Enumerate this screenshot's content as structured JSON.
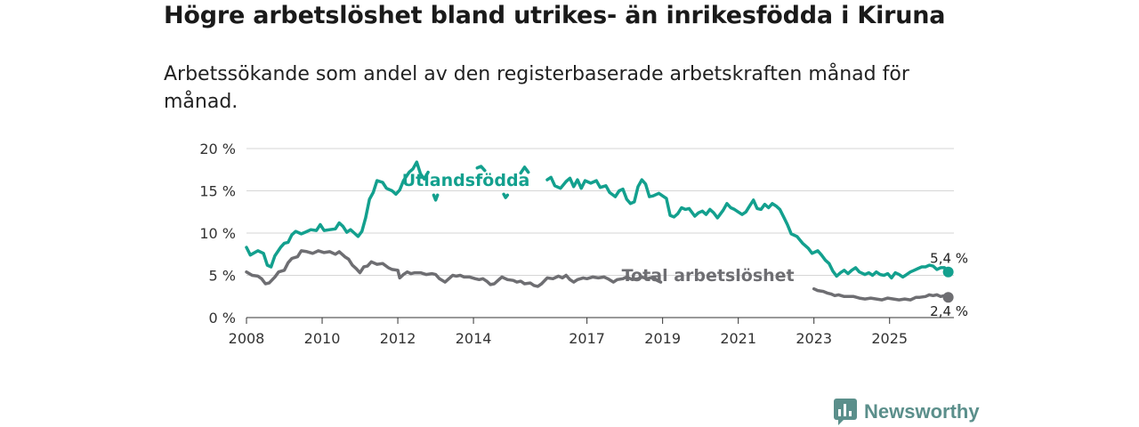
{
  "title": "Högre arbetslöshet bland utrikes- än inrikesfödda i Kiruna",
  "subtitle": "Arbetssökande som andel av den registerbaserade arbetskraften månad för månad.",
  "brand": "Newsworthy",
  "chart_data": {
    "type": "line",
    "title": "Högre arbetslöshet bland utrikes- än inrikesfödda i Kiruna",
    "subtitle": "Arbetssökande som andel av den registerbaserade arbetskraften månad för månad.",
    "xlabel": "",
    "ylabel": "",
    "xlim": [
      2008.0,
      2026.7
    ],
    "ylim": [
      0,
      20
    ],
    "x_ticks": [
      2008,
      2010,
      2012,
      2014,
      2017,
      2019,
      2021,
      2023,
      2025
    ],
    "y_ticks": [
      {
        "value": 0,
        "label": "0 %"
      },
      {
        "value": 5,
        "label": "5 %"
      },
      {
        "value": 10,
        "label": "10 %"
      },
      {
        "value": 15,
        "label": "15 %"
      },
      {
        "value": 20,
        "label": "20 %"
      }
    ],
    "grid": true,
    "series": [
      {
        "name": "Utlandsfödda",
        "color": "#13a08e",
        "end_label": "5,4 %",
        "points": [
          [
            2008.0,
            8.3
          ],
          [
            2008.1,
            7.4
          ],
          [
            2008.3,
            7.9
          ],
          [
            2008.45,
            7.6
          ],
          [
            2008.55,
            6.2
          ],
          [
            2008.65,
            6.0
          ],
          [
            2008.75,
            7.3
          ],
          [
            2008.9,
            8.3
          ],
          [
            2009.0,
            8.8
          ],
          [
            2009.1,
            8.9
          ],
          [
            2009.2,
            9.8
          ],
          [
            2009.3,
            10.2
          ],
          [
            2009.45,
            9.9
          ],
          [
            2009.55,
            10.1
          ],
          [
            2009.7,
            10.4
          ],
          [
            2009.85,
            10.3
          ],
          [
            2009.95,
            11.0
          ],
          [
            2010.05,
            10.3
          ],
          [
            2010.2,
            10.4
          ],
          [
            2010.35,
            10.5
          ],
          [
            2010.45,
            11.2
          ],
          [
            2010.55,
            10.8
          ],
          [
            2010.65,
            10.1
          ],
          [
            2010.75,
            10.4
          ],
          [
            2010.85,
            10.0
          ],
          [
            2010.95,
            9.6
          ],
          [
            2011.05,
            10.2
          ],
          [
            2011.15,
            11.8
          ],
          [
            2011.25,
            14.0
          ],
          [
            2011.35,
            14.8
          ],
          [
            2011.45,
            16.2
          ],
          [
            2011.6,
            16.0
          ],
          [
            2011.7,
            15.3
          ],
          [
            2011.85,
            15.0
          ],
          [
            2011.95,
            14.6
          ],
          [
            2012.05,
            15.1
          ],
          [
            2012.15,
            16.2
          ],
          [
            2012.3,
            17.2
          ],
          [
            2012.4,
            17.6
          ],
          [
            2012.5,
            18.4
          ],
          [
            2012.6,
            17.0
          ],
          [
            2012.7,
            16.4
          ],
          [
            2012.8,
            17.2
          ],
          null,
          [
            2012.95,
            14.5
          ],
          [
            2013.0,
            13.9
          ],
          [
            2013.05,
            14.5
          ],
          null,
          [
            2014.1,
            17.7
          ],
          [
            2014.2,
            17.9
          ],
          [
            2014.3,
            17.4
          ],
          null,
          [
            2014.8,
            14.6
          ],
          [
            2014.85,
            14.2
          ],
          [
            2014.9,
            14.5
          ],
          null,
          [
            2015.25,
            17.1
          ],
          [
            2015.35,
            17.8
          ],
          [
            2015.45,
            17.2
          ],
          null,
          [
            2015.95,
            16.3
          ],
          [
            2016.05,
            16.6
          ],
          [
            2016.15,
            15.6
          ],
          [
            2016.3,
            15.3
          ],
          [
            2016.45,
            16.1
          ],
          [
            2016.55,
            16.5
          ],
          [
            2016.65,
            15.5
          ],
          [
            2016.75,
            16.3
          ],
          [
            2016.85,
            15.3
          ],
          [
            2016.95,
            16.2
          ],
          [
            2017.1,
            15.9
          ],
          [
            2017.25,
            16.2
          ],
          [
            2017.35,
            15.4
          ],
          [
            2017.5,
            15.6
          ],
          [
            2017.6,
            14.8
          ],
          [
            2017.75,
            14.3
          ],
          [
            2017.85,
            15.0
          ],
          [
            2017.95,
            15.2
          ],
          [
            2018.05,
            14.0
          ],
          [
            2018.15,
            13.5
          ],
          [
            2018.25,
            13.7
          ],
          [
            2018.35,
            15.5
          ],
          [
            2018.45,
            16.3
          ],
          [
            2018.55,
            15.8
          ],
          [
            2018.65,
            14.3
          ],
          [
            2018.75,
            14.4
          ],
          [
            2018.9,
            14.7
          ],
          [
            2019.0,
            14.4
          ],
          [
            2019.1,
            14.1
          ],
          [
            2019.2,
            12.1
          ],
          [
            2019.3,
            11.9
          ],
          [
            2019.4,
            12.3
          ],
          [
            2019.5,
            13.0
          ],
          [
            2019.6,
            12.8
          ],
          [
            2019.7,
            12.9
          ],
          [
            2019.85,
            12.0
          ],
          [
            2019.95,
            12.4
          ],
          [
            2020.05,
            12.6
          ],
          [
            2020.15,
            12.2
          ],
          [
            2020.25,
            12.8
          ],
          [
            2020.35,
            12.4
          ],
          [
            2020.45,
            11.8
          ],
          [
            2020.6,
            12.7
          ],
          [
            2020.7,
            13.5
          ],
          [
            2020.8,
            13.0
          ],
          [
            2020.9,
            12.8
          ],
          [
            2021.0,
            12.5
          ],
          [
            2021.1,
            12.2
          ],
          [
            2021.2,
            12.5
          ],
          [
            2021.3,
            13.2
          ],
          [
            2021.4,
            13.9
          ],
          [
            2021.5,
            12.9
          ],
          [
            2021.6,
            12.8
          ],
          [
            2021.7,
            13.4
          ],
          [
            2021.8,
            13.0
          ],
          [
            2021.9,
            13.5
          ],
          [
            2022.0,
            13.2
          ],
          [
            2022.1,
            12.8
          ],
          [
            2022.2,
            11.9
          ],
          [
            2022.3,
            11.0
          ],
          [
            2022.4,
            9.9
          ],
          [
            2022.55,
            9.6
          ],
          [
            2022.7,
            8.8
          ],
          [
            2022.85,
            8.2
          ],
          [
            2022.95,
            7.6
          ],
          [
            2023.1,
            7.9
          ],
          [
            2023.2,
            7.4
          ],
          [
            2023.3,
            6.8
          ],
          [
            2023.4,
            6.4
          ],
          [
            2023.5,
            5.5
          ],
          [
            2023.6,
            4.9
          ],
          [
            2023.7,
            5.3
          ],
          [
            2023.8,
            5.6
          ],
          [
            2023.9,
            5.2
          ],
          [
            2024.0,
            5.6
          ],
          [
            2024.1,
            5.9
          ],
          [
            2024.2,
            5.4
          ],
          [
            2024.35,
            5.1
          ],
          [
            2024.45,
            5.3
          ],
          [
            2024.55,
            5.0
          ],
          [
            2024.65,
            5.4
          ],
          [
            2024.75,
            5.1
          ],
          [
            2024.85,
            5.0
          ],
          [
            2024.95,
            5.2
          ],
          [
            2025.05,
            4.7
          ],
          [
            2025.15,
            5.3
          ],
          [
            2025.25,
            5.1
          ],
          [
            2025.35,
            4.8
          ],
          [
            2025.45,
            5.1
          ],
          [
            2025.55,
            5.4
          ],
          [
            2025.65,
            5.6
          ],
          [
            2025.75,
            5.8
          ],
          [
            2025.85,
            6.0
          ],
          [
            2025.95,
            6.0
          ],
          [
            2026.05,
            6.2
          ],
          [
            2026.15,
            6.1
          ],
          [
            2026.25,
            5.7
          ],
          [
            2026.35,
            5.9
          ],
          [
            2026.45,
            5.9
          ],
          [
            2026.55,
            5.4
          ]
        ]
      },
      {
        "name": "Total arbetslöshet",
        "color": "#6e6e72",
        "end_label": "2,4 %",
        "points": [
          [
            2008.0,
            5.4
          ],
          [
            2008.15,
            5.0
          ],
          [
            2008.3,
            4.9
          ],
          [
            2008.4,
            4.6
          ],
          [
            2008.5,
            4.0
          ],
          [
            2008.6,
            4.1
          ],
          [
            2008.75,
            4.8
          ],
          [
            2008.85,
            5.4
          ],
          [
            2009.0,
            5.6
          ],
          [
            2009.1,
            6.5
          ],
          [
            2009.2,
            7.0
          ],
          [
            2009.35,
            7.2
          ],
          [
            2009.45,
            7.9
          ],
          [
            2009.6,
            7.8
          ],
          [
            2009.75,
            7.6
          ],
          [
            2009.9,
            7.9
          ],
          [
            2010.05,
            7.7
          ],
          [
            2010.2,
            7.8
          ],
          [
            2010.35,
            7.5
          ],
          [
            2010.45,
            7.8
          ],
          [
            2010.6,
            7.2
          ],
          [
            2010.7,
            6.9
          ],
          [
            2010.8,
            6.2
          ],
          [
            2010.9,
            5.8
          ],
          [
            2011.0,
            5.3
          ],
          [
            2011.1,
            6.0
          ],
          [
            2011.2,
            6.1
          ],
          [
            2011.3,
            6.6
          ],
          [
            2011.45,
            6.3
          ],
          [
            2011.6,
            6.4
          ],
          [
            2011.75,
            5.9
          ],
          [
            2011.85,
            5.7
          ],
          [
            2012.0,
            5.6
          ],
          [
            2012.05,
            4.7
          ],
          [
            2012.15,
            5.1
          ],
          [
            2012.25,
            5.4
          ],
          [
            2012.35,
            5.2
          ],
          [
            2012.45,
            5.3
          ],
          [
            2012.6,
            5.3
          ],
          [
            2012.75,
            5.1
          ],
          [
            2012.9,
            5.2
          ],
          [
            2013.0,
            5.1
          ],
          [
            2013.1,
            4.6
          ],
          [
            2013.25,
            4.2
          ],
          [
            2013.35,
            4.6
          ],
          [
            2013.45,
            5.0
          ],
          [
            2013.55,
            4.9
          ],
          [
            2013.65,
            5.0
          ],
          [
            2013.75,
            4.8
          ],
          [
            2013.9,
            4.8
          ],
          [
            2014.05,
            4.6
          ],
          [
            2014.15,
            4.5
          ],
          [
            2014.25,
            4.6
          ],
          [
            2014.35,
            4.3
          ],
          [
            2014.45,
            3.9
          ],
          [
            2014.55,
            4.0
          ],
          [
            2014.65,
            4.4
          ],
          [
            2014.75,
            4.8
          ],
          [
            2014.9,
            4.5
          ],
          [
            2015.05,
            4.4
          ],
          [
            2015.15,
            4.2
          ],
          [
            2015.25,
            4.3
          ],
          [
            2015.35,
            4.0
          ],
          [
            2015.5,
            4.1
          ],
          [
            2015.6,
            3.8
          ],
          [
            2015.7,
            3.7
          ],
          [
            2015.8,
            4.0
          ],
          [
            2015.95,
            4.7
          ],
          [
            2016.1,
            4.6
          ],
          [
            2016.25,
            4.9
          ],
          [
            2016.35,
            4.7
          ],
          [
            2016.45,
            5.0
          ],
          [
            2016.55,
            4.5
          ],
          [
            2016.65,
            4.2
          ],
          [
            2016.75,
            4.5
          ],
          [
            2016.9,
            4.7
          ],
          [
            2017.0,
            4.6
          ],
          [
            2017.15,
            4.8
          ],
          [
            2017.3,
            4.7
          ],
          [
            2017.45,
            4.8
          ],
          [
            2017.55,
            4.6
          ],
          [
            2017.7,
            4.2
          ],
          [
            2017.8,
            4.5
          ],
          [
            2017.95,
            4.6
          ],
          [
            2018.05,
            4.8
          ],
          [
            2018.2,
            4.5
          ],
          [
            2018.35,
            4.6
          ],
          [
            2018.45,
            4.8
          ],
          [
            2018.6,
            4.6
          ],
          [
            2018.75,
            4.8
          ],
          [
            2018.85,
            4.4
          ],
          [
            2018.95,
            4.2
          ],
          null,
          [
            2023.0,
            3.4
          ],
          [
            2023.1,
            3.2
          ],
          [
            2023.25,
            3.1
          ],
          [
            2023.35,
            2.9
          ],
          [
            2023.45,
            2.8
          ],
          [
            2023.55,
            2.6
          ],
          [
            2023.65,
            2.7
          ],
          [
            2023.8,
            2.5
          ],
          [
            2023.9,
            2.5
          ],
          [
            2024.05,
            2.5
          ],
          [
            2024.2,
            2.3
          ],
          [
            2024.35,
            2.2
          ],
          [
            2024.5,
            2.3
          ],
          [
            2024.65,
            2.2
          ],
          [
            2024.8,
            2.1
          ],
          [
            2024.95,
            2.3
          ],
          [
            2025.1,
            2.2
          ],
          [
            2025.25,
            2.1
          ],
          [
            2025.4,
            2.2
          ],
          [
            2025.55,
            2.1
          ],
          [
            2025.7,
            2.4
          ],
          [
            2025.8,
            2.4
          ],
          [
            2025.95,
            2.5
          ],
          [
            2026.05,
            2.7
          ],
          [
            2026.15,
            2.6
          ],
          [
            2026.25,
            2.7
          ],
          [
            2026.35,
            2.5
          ],
          [
            2026.45,
            2.6
          ],
          [
            2026.55,
            2.4
          ]
        ]
      }
    ],
    "annotations": [
      {
        "text": "Utlandsfödda",
        "series": "Utlandsfödda",
        "x": 2013.8,
        "y": 15.6
      },
      {
        "text": "Total arbetslöshet",
        "series": "Total arbetslöshet",
        "x": 2020.2,
        "y": 4.3
      }
    ]
  }
}
